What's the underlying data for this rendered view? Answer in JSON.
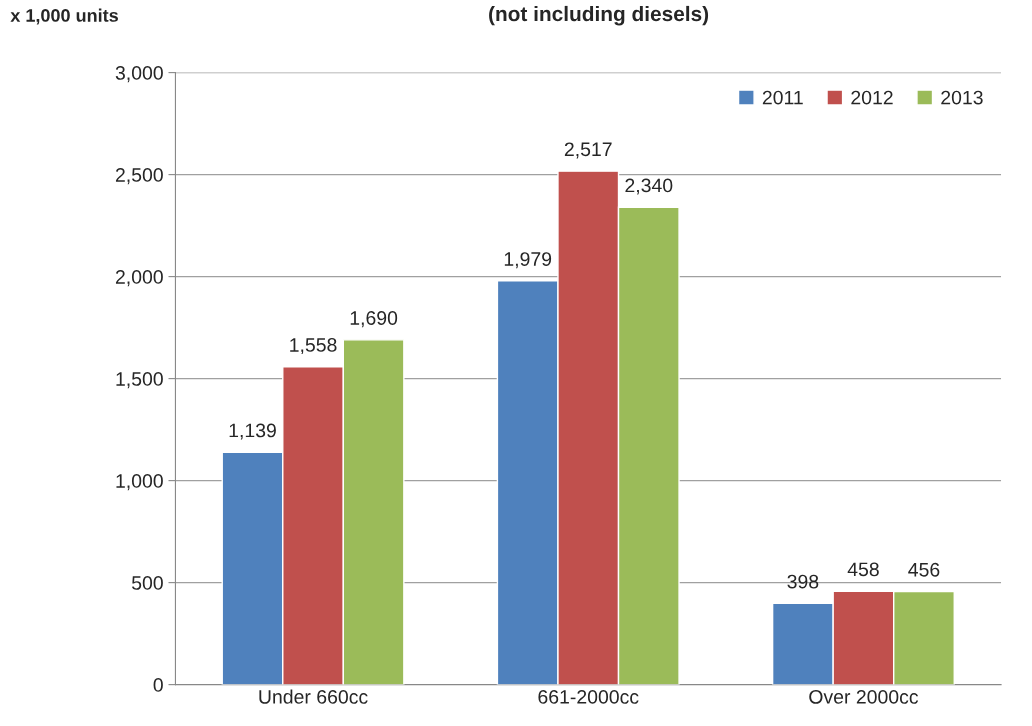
{
  "chart_data": {
    "type": "bar",
    "title": "(not including diesels)",
    "ylabel": "x 1,000 units",
    "categories": [
      "Under 660cc",
      "661-2000cc",
      "Over 2000cc"
    ],
    "series": [
      {
        "name": "2011",
        "color": "#4f81bd",
        "values": [
          1139,
          1979,
          398
        ],
        "value_labels": [
          "1,139",
          "1,979",
          "398"
        ]
      },
      {
        "name": "2012",
        "color": "#c0504d",
        "values": [
          1558,
          2517,
          458
        ],
        "value_labels": [
          "1,558",
          "2,517",
          "458"
        ]
      },
      {
        "name": "2013",
        "color": "#9bbb59",
        "values": [
          1690,
          2340,
          456
        ],
        "value_labels": [
          "1,690",
          "2,340",
          "456"
        ]
      }
    ],
    "ylim": [
      0,
      3000
    ],
    "yticks": [
      0,
      {
        "value": 500,
        "label": "500"
      },
      {
        "value": 1000,
        "label": "1,000"
      },
      {
        "value": 1500,
        "label": "1,500"
      },
      {
        "value": 2000,
        "label": "2,000"
      },
      {
        "value": 2500,
        "label": "2,500"
      },
      {
        "value": 3000,
        "label": "3,000"
      }
    ],
    "grid": "y",
    "legend": "top right"
  }
}
